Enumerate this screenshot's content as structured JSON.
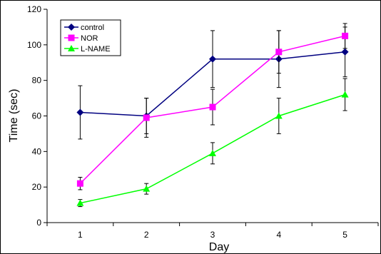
{
  "chart_data": {
    "type": "line",
    "xlabel": "Day",
    "ylabel": "Time (sec)",
    "x": [
      1,
      2,
      3,
      4,
      5
    ],
    "ylim": [
      0,
      120
    ],
    "yticks": [
      0,
      20,
      40,
      60,
      80,
      100,
      120
    ],
    "grid": false,
    "legend_position": "top-left",
    "series": [
      {
        "name": "control",
        "color": "#000080",
        "marker": "diamond",
        "values": [
          62,
          60,
          92,
          92,
          96
        ],
        "errors": [
          15,
          10,
          16,
          16,
          14
        ]
      },
      {
        "name": "NOR",
        "color": "#FF00FF",
        "marker": "square",
        "values": [
          22,
          59,
          65,
          96,
          105
        ],
        "errors": [
          3.5,
          11,
          10,
          12,
          7
        ]
      },
      {
        "name": "L-NAME",
        "color": "#00FF00",
        "marker": "triangle",
        "values": [
          11,
          19,
          39,
          60,
          72
        ],
        "errors": [
          2,
          3,
          6,
          10,
          9
        ]
      }
    ]
  }
}
